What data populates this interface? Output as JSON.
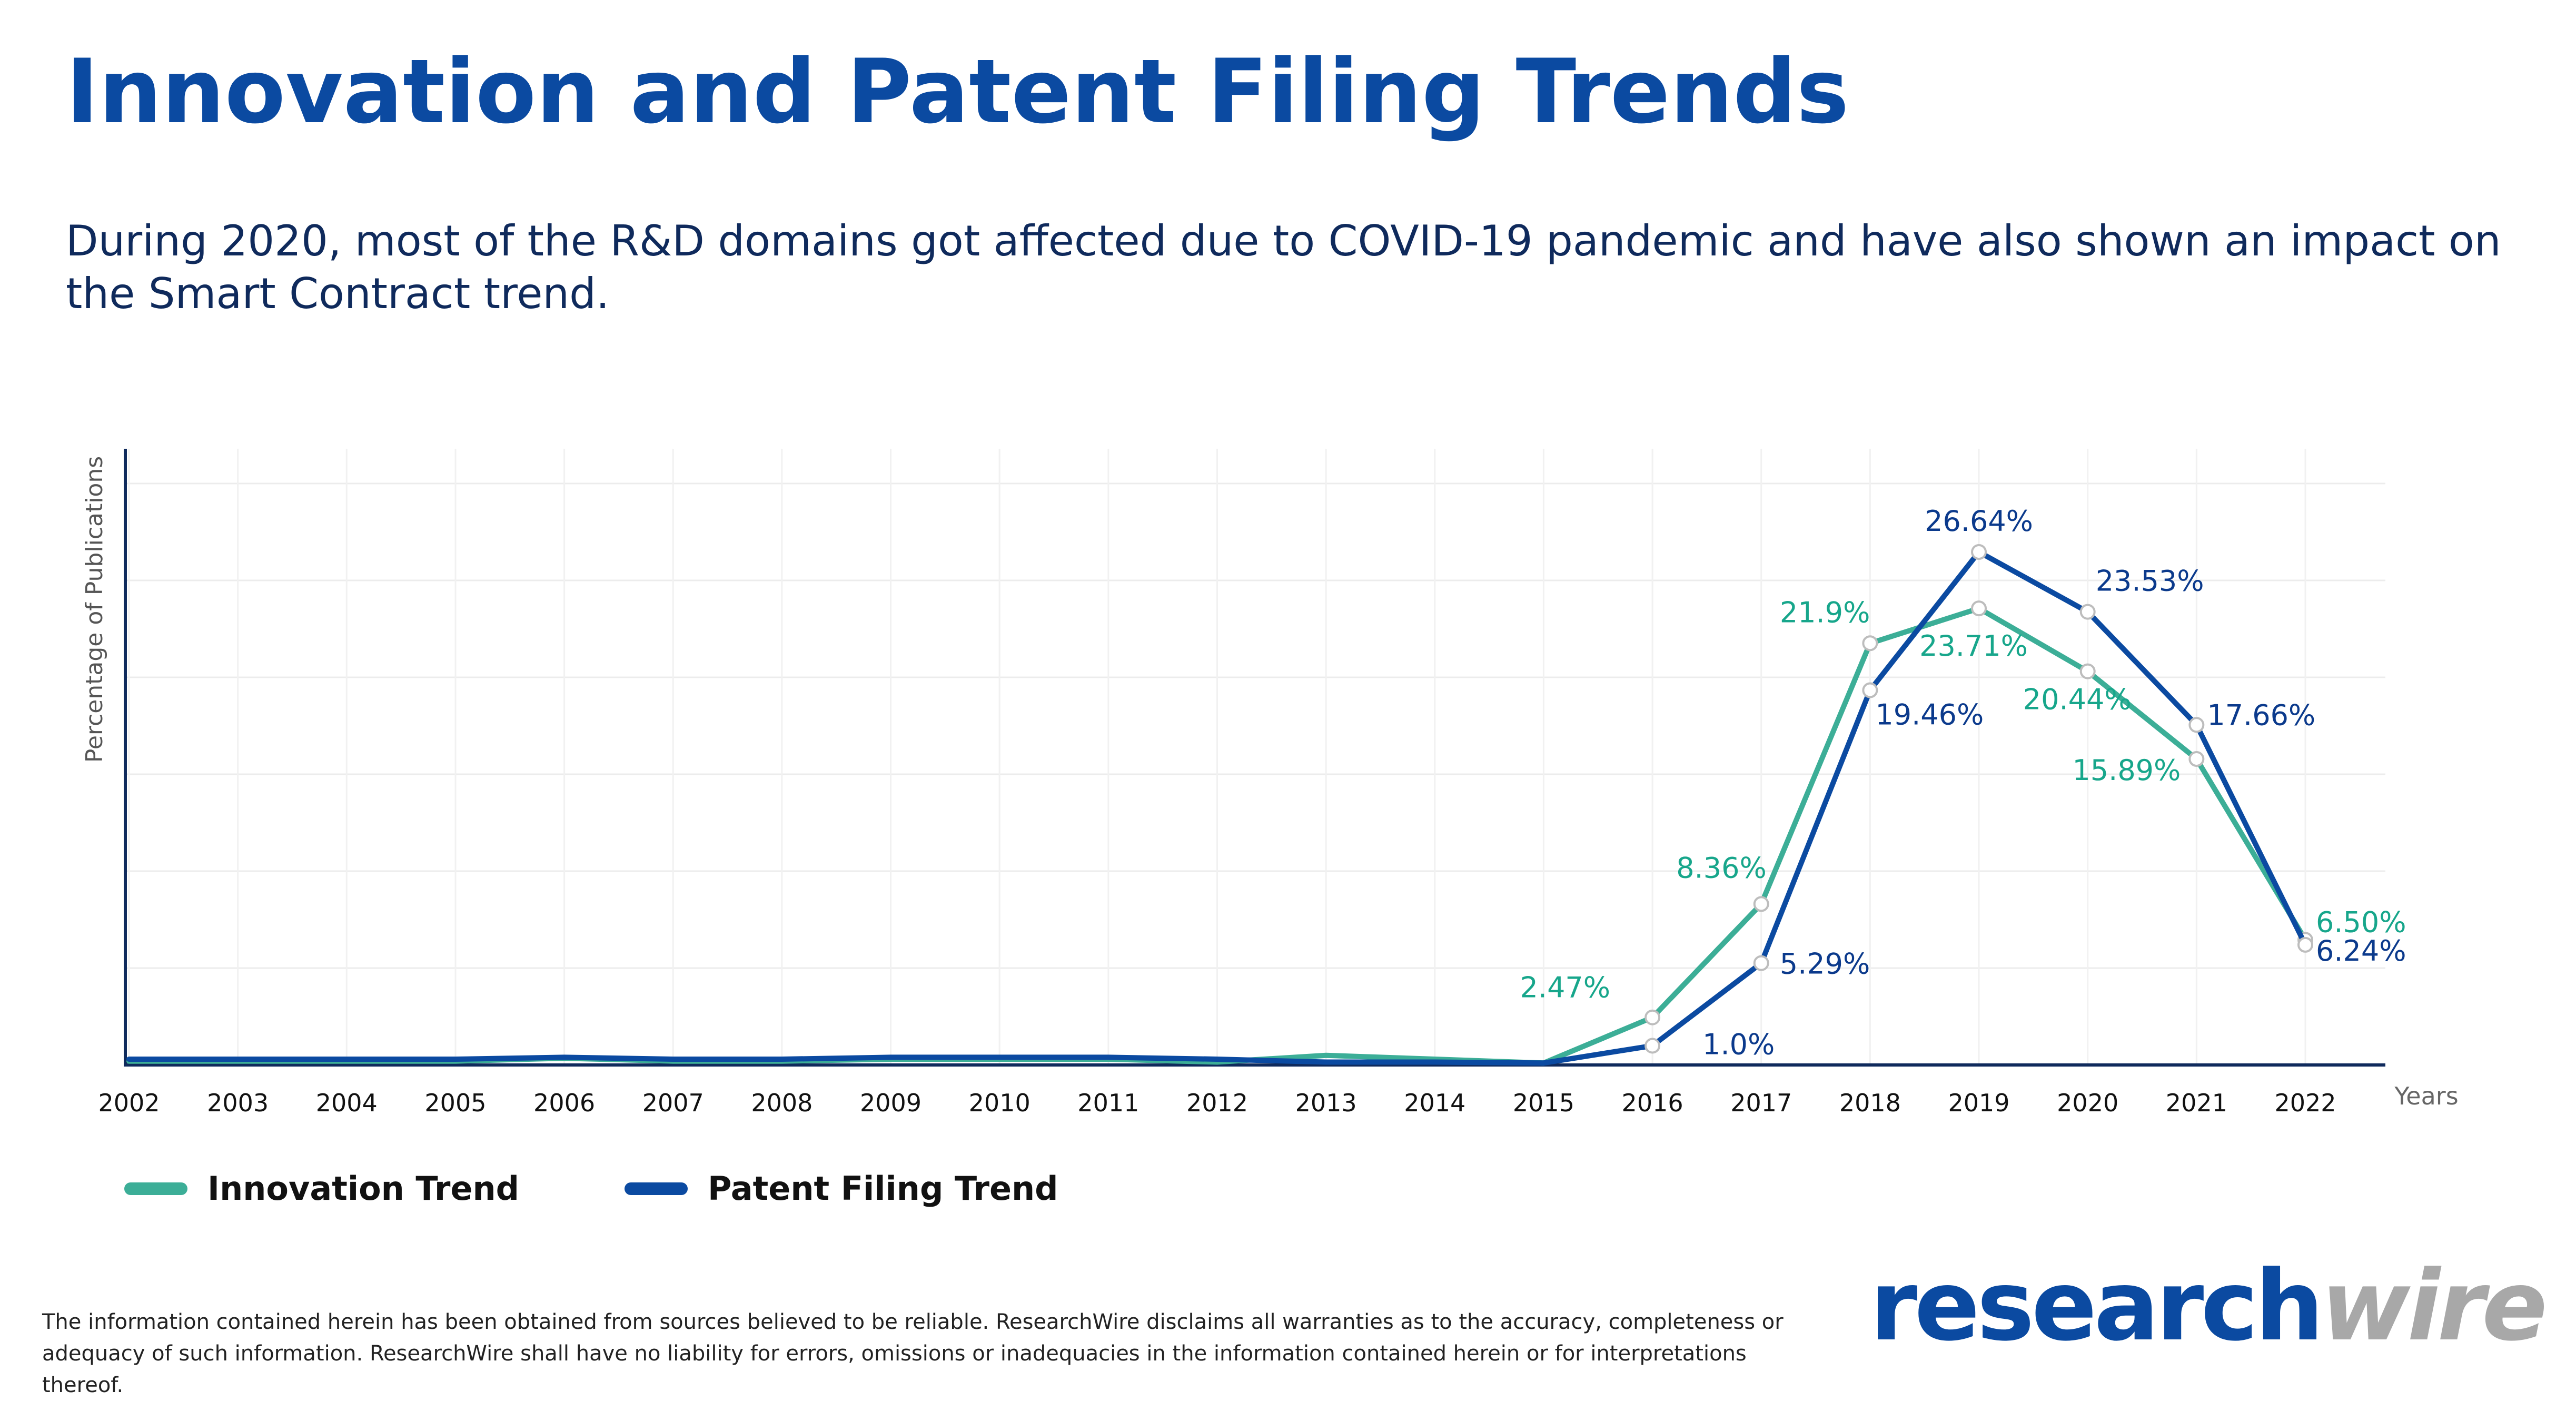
{
  "header": {
    "title": "Innovation and Patent Filing Trends",
    "subtitle": "During 2020, most of the R&D domains got affected due to COVID-19 pandemic and have also shown an impact on the Smart Contract trend."
  },
  "colors": {
    "title": "#0b4aa1",
    "innovation": "#3cae97",
    "patent": "#0b4aa1",
    "innovation_label": "#17a68b",
    "patent_label": "#0b3a8c"
  },
  "chart_data": {
    "type": "line",
    "title": "",
    "xlabel": "Years",
    "ylabel": "Percentage of Publications",
    "x": [
      "2002",
      "2003",
      "2004",
      "2005",
      "2006",
      "2007",
      "2008",
      "2009",
      "2010",
      "2011",
      "2012",
      "2013",
      "2014",
      "2015",
      "2016",
      "2017",
      "2018",
      "2019",
      "2020",
      "2021",
      "2022"
    ],
    "ylim": [
      0,
      32
    ],
    "grid": true,
    "legend_position": "bottom-left",
    "series": [
      {
        "name": "Innovation Trend",
        "color": "#3cae97",
        "values": [
          0.2,
          0.2,
          0.2,
          0.2,
          0.35,
          0.2,
          0.2,
          0.3,
          0.3,
          0.3,
          0.15,
          0.5,
          0.3,
          0.1,
          2.47,
          8.36,
          21.9,
          23.71,
          20.44,
          15.89,
          6.5
        ],
        "labels": [
          null,
          null,
          null,
          null,
          null,
          null,
          null,
          null,
          null,
          null,
          null,
          null,
          null,
          null,
          "2.47%",
          "8.36%",
          "21.9%",
          "23.71%",
          "20.44%",
          "15.89%",
          "6.50%"
        ]
      },
      {
        "name": "Patent Filing Trend",
        "color": "#0b4aa1",
        "values": [
          0.3,
          0.3,
          0.3,
          0.3,
          0.4,
          0.3,
          0.3,
          0.4,
          0.4,
          0.4,
          0.3,
          0.15,
          0.15,
          0.1,
          1.0,
          5.29,
          19.46,
          26.64,
          23.53,
          17.66,
          6.24
        ],
        "labels": [
          null,
          null,
          null,
          null,
          null,
          null,
          null,
          null,
          null,
          null,
          null,
          null,
          null,
          null,
          "1.0%",
          "5.29%",
          "19.46%",
          "26.64%",
          "23.53%",
          "17.66%",
          "6.24%"
        ]
      }
    ]
  },
  "footer": {
    "disclaimer": "The information contained herein has been obtained from sources believed to be reliable. ResearchWire disclaims all warranties as to the accuracy, completeness or adequacy of such information. ResearchWire shall have no liability for errors, omissions or inadequacies in the information contained herein or for interpretations thereof.",
    "brand_primary": "research",
    "brand_secondary": "wire"
  }
}
